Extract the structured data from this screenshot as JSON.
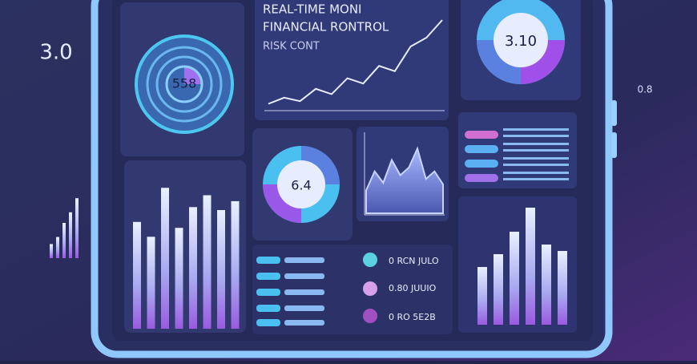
{
  "left_label": "3.0",
  "right_label": "0.8",
  "title_lines": [
    "REAL-TIME MONI",
    "FINANCIAL RONTROL",
    "RISK CONT"
  ],
  "gauge_value": "558",
  "donut_top_value": "3.10",
  "donut_mid_value": "6.4",
  "list_rows": [
    "0 RCN JULO",
    "0.80 JUUIO",
    "0 RO 5E2B"
  ],
  "bars_main": [
    72,
    62,
    95,
    68,
    82,
    90,
    80,
    86
  ],
  "bars_right": [
    36,
    44,
    58,
    73,
    50,
    46
  ],
  "bars_side": [
    8,
    12,
    20,
    26,
    34
  ],
  "line_values": [
    5,
    12,
    8,
    22,
    16,
    34,
    28,
    48,
    42,
    70,
    80,
    100
  ],
  "area_values": [
    30,
    55,
    40,
    70,
    50,
    60,
    85,
    45,
    55,
    38
  ]
}
